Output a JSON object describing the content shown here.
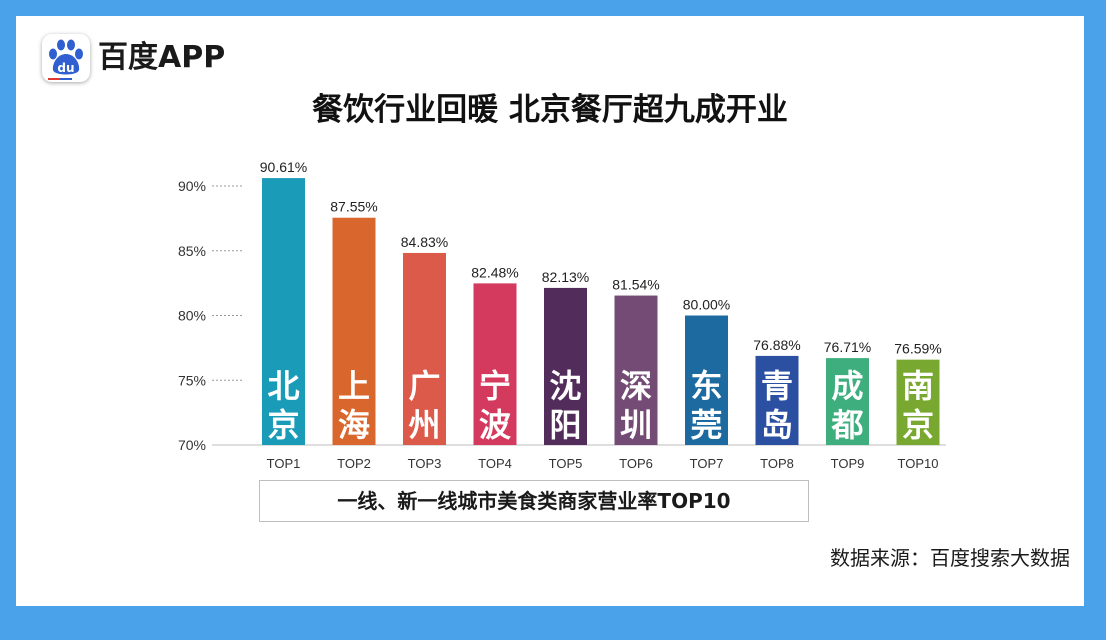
{
  "header": {
    "brand": "百度APP",
    "logo_text": "du",
    "logo_icon": "baidu-paw-icon"
  },
  "title": "餐饮行业回暖 北京餐厅超九成开业",
  "caption": "一线、新一线城市美食类商家营业率TOP10",
  "source": "数据来源：百度搜索大数据",
  "colors": {
    "background": "#4aa3ea",
    "bars": [
      "#1a9bb8",
      "#d9662c",
      "#dc5a4a",
      "#d43a5e",
      "#522c5a",
      "#734b74",
      "#1d6aa0",
      "#2b4fa1",
      "#3fae7f",
      "#78a82f"
    ]
  },
  "chart_data": {
    "type": "bar",
    "categories": [
      "TOP1",
      "TOP2",
      "TOP3",
      "TOP4",
      "TOP5",
      "TOP6",
      "TOP7",
      "TOP8",
      "TOP9",
      "TOP10"
    ],
    "cities": [
      "北京",
      "上海",
      "广州",
      "宁波",
      "沈阳",
      "深圳",
      "东莞",
      "青岛",
      "成都",
      "南京"
    ],
    "values": [
      90.61,
      87.55,
      84.83,
      82.48,
      82.13,
      81.54,
      80.0,
      76.88,
      76.71,
      76.59
    ],
    "value_labels": [
      "90.61%",
      "87.55%",
      "84.83%",
      "82.48%",
      "82.13%",
      "81.54%",
      "80.00%",
      "76.88%",
      "76.71%",
      "76.59%"
    ],
    "yticks": [
      70,
      75,
      80,
      85,
      90
    ],
    "ytick_labels": [
      "70%",
      "75%",
      "80%",
      "85%",
      "90%"
    ],
    "ylim": [
      70,
      90.61
    ],
    "grid": "dashed horizontal",
    "legend": "none"
  }
}
